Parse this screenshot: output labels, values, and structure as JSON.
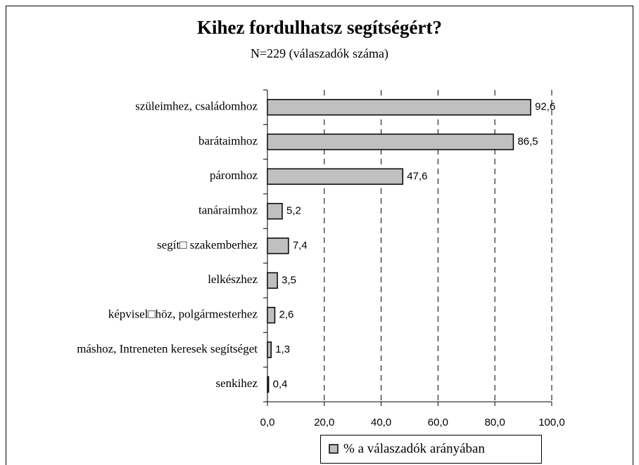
{
  "chart_data": {
    "type": "bar",
    "orientation": "horizontal",
    "title": "Kihez fordulhatsz segítségért?",
    "subtitle": "N=229 (válaszadók száma)",
    "categories": [
      "szüleimhez, családomhoz",
      "barátaimhoz",
      "páromhoz",
      "tanáraimhoz",
      "segít□ szakemberhez",
      "lelkészhez",
      "képvisel□höz, polgármesterhez",
      "máshoz, Intreneten keresek segítséget",
      "senkihez"
    ],
    "series": [
      {
        "name": "% a válaszadók arányában",
        "color": "#c0c0c0",
        "values": [
          92.6,
          86.5,
          47.6,
          5.2,
          7.4,
          3.5,
          2.6,
          1.3,
          0.4
        ],
        "value_labels": [
          "92,6",
          "86,5",
          "47,6",
          "5,2",
          "7,4",
          "3,5",
          "2,6",
          "1,3",
          "0,4"
        ]
      }
    ],
    "xlim": [
      0,
      100
    ],
    "xticks": [
      {
        "value": 0,
        "label": "0,0"
      },
      {
        "value": 20,
        "label": "20,0"
      },
      {
        "value": 40,
        "label": "40,0"
      },
      {
        "value": 60,
        "label": "60,0"
      },
      {
        "value": 80,
        "label": "80,0"
      },
      {
        "value": 100,
        "label": "100,0"
      }
    ],
    "grid": true,
    "legend": "bottom"
  }
}
